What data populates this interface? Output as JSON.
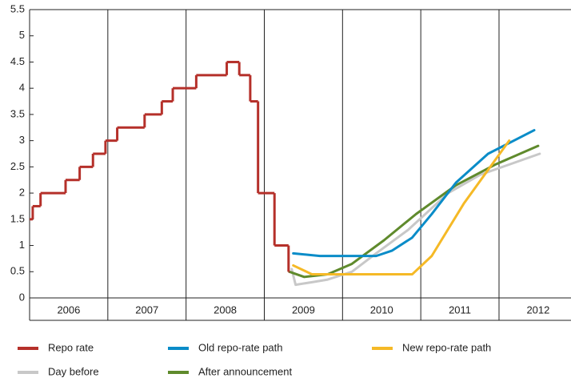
{
  "chart_data": {
    "type": "line",
    "xlim": [
      2006,
      2012.92
    ],
    "ylim": [
      0,
      5.5
    ],
    "xticks": [
      2006,
      2007,
      2008,
      2009,
      2010,
      2011,
      2012
    ],
    "yticks": [
      0,
      0.5,
      1,
      1.5,
      2,
      2.5,
      3,
      3.5,
      4,
      4.5,
      5,
      5.5
    ],
    "grid": "x",
    "series": [
      {
        "name": "Repo rate",
        "color": "#b5302a",
        "drawstyle": "steps-post",
        "x": [
          2006.0,
          2006.04,
          2006.14,
          2006.46,
          2006.64,
          2006.81,
          2006.97,
          2007.12,
          2007.47,
          2007.69,
          2007.83,
          2008.13,
          2008.52,
          2008.68,
          2008.82,
          2008.92,
          2009.13,
          2009.31
        ],
        "values": [
          1.5,
          1.75,
          2,
          2.25,
          2.5,
          2.75,
          3,
          3.25,
          3.5,
          3.75,
          4,
          4.25,
          4.5,
          4.25,
          3.75,
          2,
          1,
          0.5
        ]
      },
      {
        "name": "Old repo-rate path",
        "color": "#0a8cc8",
        "x": [
          2009.37,
          2009.71,
          2010.43,
          2010.63,
          2010.89,
          2011.14,
          2011.45,
          2011.86,
          2012.45
        ],
        "values": [
          0.85,
          0.8,
          0.8,
          0.9,
          1.15,
          1.6,
          2.2,
          2.75,
          3.2
        ]
      },
      {
        "name": "New repo-rate path",
        "color": "#f5b926",
        "x": [
          2009.37,
          2009.61,
          2010.22,
          2010.89,
          2011.14,
          2011.55,
          2012.13
        ],
        "values": [
          0.62,
          0.45,
          0.45,
          0.45,
          0.8,
          1.8,
          3.0
        ]
      },
      {
        "name": "Day before",
        "color": "#c8c8c8",
        "x": [
          2009.35,
          2009.4,
          2009.61,
          2009.81,
          2010.12,
          2010.43,
          2010.84,
          2011.35,
          2011.76,
          2012.52
        ],
        "values": [
          0.55,
          0.25,
          0.3,
          0.35,
          0.5,
          0.85,
          1.3,
          2.0,
          2.35,
          2.75
        ]
      },
      {
        "name": "After announcement",
        "color": "#5f8a2c",
        "x": [
          2009.32,
          2009.51,
          2009.81,
          2010.12,
          2010.53,
          2010.94,
          2011.45,
          2011.96,
          2012.5
        ],
        "values": [
          0.5,
          0.4,
          0.45,
          0.65,
          1.1,
          1.6,
          2.15,
          2.55,
          2.9
        ]
      }
    ]
  }
}
